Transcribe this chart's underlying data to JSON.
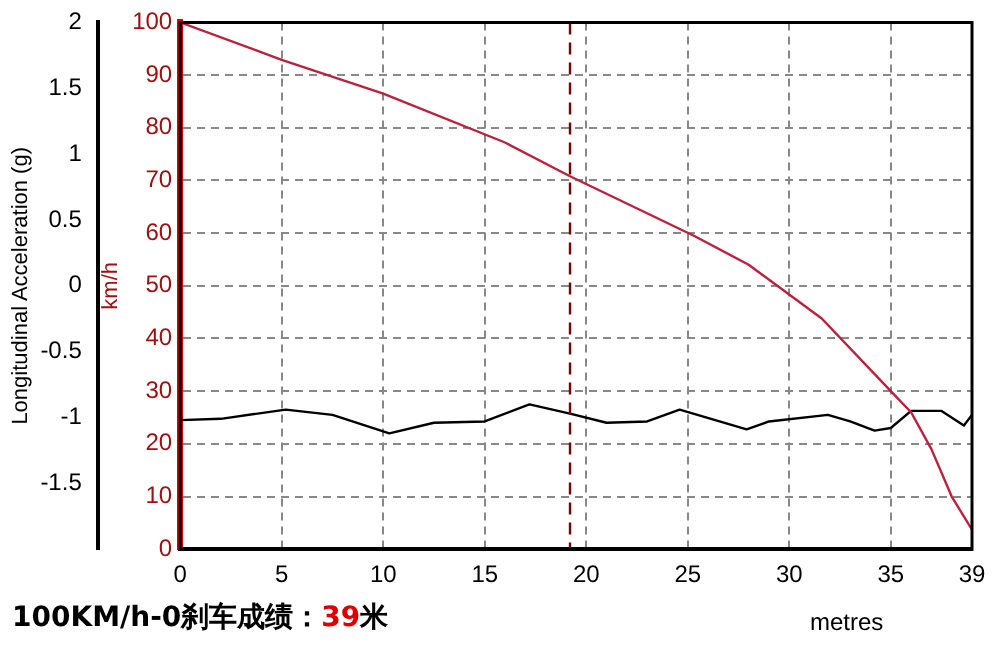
{
  "chart_data": {
    "type": "line",
    "xlabel": "metres",
    "ylabel": "Longitudinal Acceleration (g)",
    "y2label": "km/h",
    "annotations": [
      "100KM/h-0刹车成绩：",
      "39",
      "米"
    ],
    "xlim": [
      0,
      39
    ],
    "xticks": [
      0,
      5,
      10,
      15,
      20,
      25,
      30,
      35,
      39
    ],
    "ylim": [
      -2,
      2
    ],
    "yticks": [
      -1.5,
      -1,
      -0.5,
      0,
      0.5,
      1,
      1.5,
      2
    ],
    "y2lim": [
      0,
      100
    ],
    "y2ticks": [
      0,
      10,
      20,
      30,
      40,
      50,
      60,
      70,
      80,
      90,
      100
    ],
    "grid": true,
    "legend": false,
    "marker": "none",
    "line_style": "solid",
    "ref_lines": [
      {
        "axis": "x",
        "value": 19.2,
        "color": "#800000",
        "line_style": "dashed"
      }
    ],
    "series": [
      {
        "color": "#c0203a",
        "axis": "y2",
        "x": [
          0,
          5,
          10,
          16,
          19.2,
          25.3,
          28,
          31.6,
          35,
          36,
          37,
          38,
          39
        ],
        "values": [
          100,
          92.9,
          86.5,
          77.2,
          70.8,
          59.5,
          54,
          43.8,
          30,
          26,
          19,
          10,
          3.7
        ]
      },
      {
        "color": "#000000",
        "x": [
          0,
          2,
          5.2,
          7.5,
          10.3,
          12.5,
          15,
          17.2,
          19.2,
          21,
          23,
          24.6,
          27.9,
          29,
          31.9,
          33,
          34.2,
          35,
          36,
          37.5,
          38.6,
          39
        ],
        "values": [
          -1.02,
          -1.01,
          -0.94,
          -0.98,
          -1.12,
          -1.04,
          -1.03,
          -0.9,
          -0.97,
          -1.04,
          -1.03,
          -0.94,
          -1.09,
          -1.03,
          -0.98,
          -1.03,
          -1.1,
          -1.08,
          -0.95,
          -0.95,
          -1.06,
          -0.98
        ]
      }
    ]
  }
}
